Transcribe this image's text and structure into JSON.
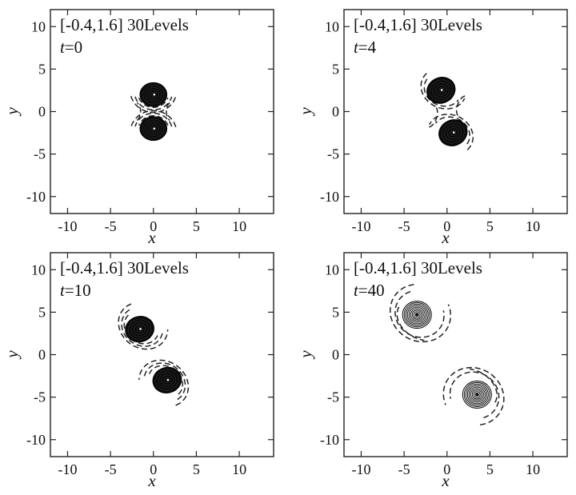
{
  "chart_data": [
    {
      "type": "contour",
      "annotation": "[-0.4,1.6] 30Levels",
      "time_label": "t",
      "time_value": "=0",
      "xlabel": "x",
      "ylabel": "y",
      "xlim": [
        -12,
        14
      ],
      "ylim": [
        -12,
        12
      ],
      "xticks": [
        -10,
        -5,
        0,
        5,
        10
      ],
      "yticks": [
        -10,
        -5,
        0,
        5,
        10
      ],
      "vortices": [
        {
          "x": 0,
          "y": 2,
          "core_radius": 1.4,
          "tilt": 0,
          "style": "filled"
        },
        {
          "x": 0,
          "y": -2,
          "core_radius": 1.4,
          "tilt": 0,
          "style": "filled"
        }
      ],
      "negative_contours": [
        {
          "cx": 0,
          "cy": 2.5,
          "rx": 2.7,
          "ry": 2.6,
          "rot": 0,
          "start": 195,
          "end": 345
        },
        {
          "cx": 0,
          "cy": 2.3,
          "rx": 2.2,
          "ry": 2.1,
          "rot": 0,
          "start": 195,
          "end": 345
        },
        {
          "cx": 0,
          "cy": 2.2,
          "rx": 1.8,
          "ry": 1.7,
          "rot": 0,
          "start": 200,
          "end": 340
        },
        {
          "cx": 0,
          "cy": -2.5,
          "rx": 2.7,
          "ry": 2.6,
          "rot": 0,
          "start": 15,
          "end": 165
        },
        {
          "cx": 0,
          "cy": -2.3,
          "rx": 2.2,
          "ry": 2.1,
          "rot": 0,
          "start": 15,
          "end": 165
        },
        {
          "cx": 0,
          "cy": -2.2,
          "rx": 1.8,
          "ry": 1.7,
          "rot": 0,
          "start": 20,
          "end": 160
        },
        {
          "cx": -2.3,
          "cy": 0,
          "rx": 0.8,
          "ry": 1.2,
          "rot": 0,
          "start": -60,
          "end": 60
        },
        {
          "cx": 2.3,
          "cy": 0,
          "rx": 0.8,
          "ry": 1.2,
          "rot": 0,
          "start": 120,
          "end": 240
        }
      ]
    },
    {
      "type": "contour",
      "annotation": "[-0.4,1.6] 30Levels",
      "time_label": "t",
      "time_value": "=4",
      "xlabel": "x",
      "ylabel": "y",
      "xlim": [
        -12,
        14
      ],
      "ylim": [
        -12,
        12
      ],
      "xticks": [
        -10,
        -5,
        0,
        5,
        10
      ],
      "yticks": [
        -10,
        -5,
        0,
        5,
        10
      ],
      "vortices": [
        {
          "x": -0.7,
          "y": 2.5,
          "core_radius": 1.5,
          "tilt": -25,
          "style": "filled"
        },
        {
          "x": 0.7,
          "y": -2.5,
          "core_radius": 1.5,
          "tilt": -25,
          "style": "filled"
        }
      ],
      "negative_contours": [
        {
          "cx": -0.4,
          "cy": 2.7,
          "rx": 2.7,
          "ry": 2.3,
          "rot": -25,
          "start": 160,
          "end": 360
        },
        {
          "cx": -0.5,
          "cy": 2.6,
          "rx": 2.2,
          "ry": 1.9,
          "rot": -25,
          "start": 170,
          "end": 350
        },
        {
          "cx": 0.4,
          "cy": -2.7,
          "rx": 2.7,
          "ry": 2.3,
          "rot": -25,
          "start": -20,
          "end": 180
        },
        {
          "cx": 0.5,
          "cy": -2.6,
          "rx": 2.2,
          "ry": 1.9,
          "rot": -25,
          "start": -10,
          "end": 170
        },
        {
          "cx": -1.9,
          "cy": -0.6,
          "rx": 0.7,
          "ry": 1.3,
          "rot": -20,
          "start": -70,
          "end": 70
        },
        {
          "cx": 1.9,
          "cy": 0.6,
          "rx": 0.7,
          "ry": 1.3,
          "rot": -20,
          "start": 110,
          "end": 250
        }
      ]
    },
    {
      "type": "contour",
      "annotation": "[-0.4,1.6] 30Levels",
      "time_label": "t",
      "time_value": "=10",
      "xlabel": "x",
      "ylabel": "y",
      "xlim": [
        -12,
        14
      ],
      "ylim": [
        -12,
        12
      ],
      "xticks": [
        -10,
        -5,
        0,
        5,
        10
      ],
      "yticks": [
        -10,
        -5,
        0,
        5,
        10
      ],
      "vortices": [
        {
          "x": -1.6,
          "y": 3.0,
          "core_radius": 1.5,
          "tilt": -15,
          "style": "filled"
        },
        {
          "x": 1.6,
          "y": -3.0,
          "core_radius": 1.5,
          "tilt": -15,
          "style": "filled"
        }
      ],
      "negative_contours": [
        {
          "cx": -1.2,
          "cy": 3.4,
          "rx": 3.0,
          "ry": 2.6,
          "rot": -35,
          "start": 150,
          "end": 390
        },
        {
          "cx": -1.3,
          "cy": 3.3,
          "rx": 2.5,
          "ry": 2.2,
          "rot": -35,
          "start": 160,
          "end": 380
        },
        {
          "cx": -1.4,
          "cy": 3.2,
          "rx": 2.1,
          "ry": 1.8,
          "rot": -35,
          "start": 170,
          "end": 370
        },
        {
          "cx": 1.2,
          "cy": -3.4,
          "rx": 3.0,
          "ry": 2.6,
          "rot": -35,
          "start": -30,
          "end": 210
        },
        {
          "cx": 1.3,
          "cy": -3.3,
          "rx": 2.5,
          "ry": 2.2,
          "rot": -35,
          "start": -20,
          "end": 200
        },
        {
          "cx": 1.4,
          "cy": -3.2,
          "rx": 2.1,
          "ry": 1.8,
          "rot": -35,
          "start": -10,
          "end": 190
        }
      ]
    },
    {
      "type": "contour",
      "annotation": "[-0.4,1.6] 30Levels",
      "time_label": "t",
      "time_value": "=40",
      "xlabel": "x",
      "ylabel": "y",
      "xlim": [
        -12,
        14
      ],
      "ylim": [
        -12,
        12
      ],
      "xticks": [
        -10,
        -5,
        0,
        5,
        10
      ],
      "yticks": [
        -10,
        -5,
        0,
        5,
        10
      ],
      "vortices": [
        {
          "x": -3.5,
          "y": 4.7,
          "core_radius": 1.6,
          "tilt": 0,
          "style": "rings"
        },
        {
          "x": 3.5,
          "y": -4.7,
          "core_radius": 1.6,
          "tilt": 0,
          "style": "rings"
        }
      ],
      "negative_contours": [
        {
          "cx": -3.1,
          "cy": 4.9,
          "rx": 3.6,
          "ry": 3.3,
          "rot": -30,
          "start": 130,
          "end": 410
        },
        {
          "cx": -3.2,
          "cy": 4.8,
          "rx": 2.9,
          "ry": 2.7,
          "rot": -30,
          "start": 140,
          "end": 400
        },
        {
          "cx": -3.0,
          "cy": 4.1,
          "rx": 3.0,
          "ry": 2.2,
          "rot": -30,
          "start": 180,
          "end": 300
        },
        {
          "cx": 3.1,
          "cy": -4.9,
          "rx": 3.6,
          "ry": 3.3,
          "rot": -30,
          "start": -50,
          "end": 230
        },
        {
          "cx": 3.2,
          "cy": -4.8,
          "rx": 2.9,
          "ry": 2.7,
          "rot": -30,
          "start": -40,
          "end": 220
        },
        {
          "cx": 3.0,
          "cy": -4.1,
          "rx": 3.0,
          "ry": 2.2,
          "rot": -30,
          "start": 0,
          "end": 120
        }
      ]
    }
  ]
}
